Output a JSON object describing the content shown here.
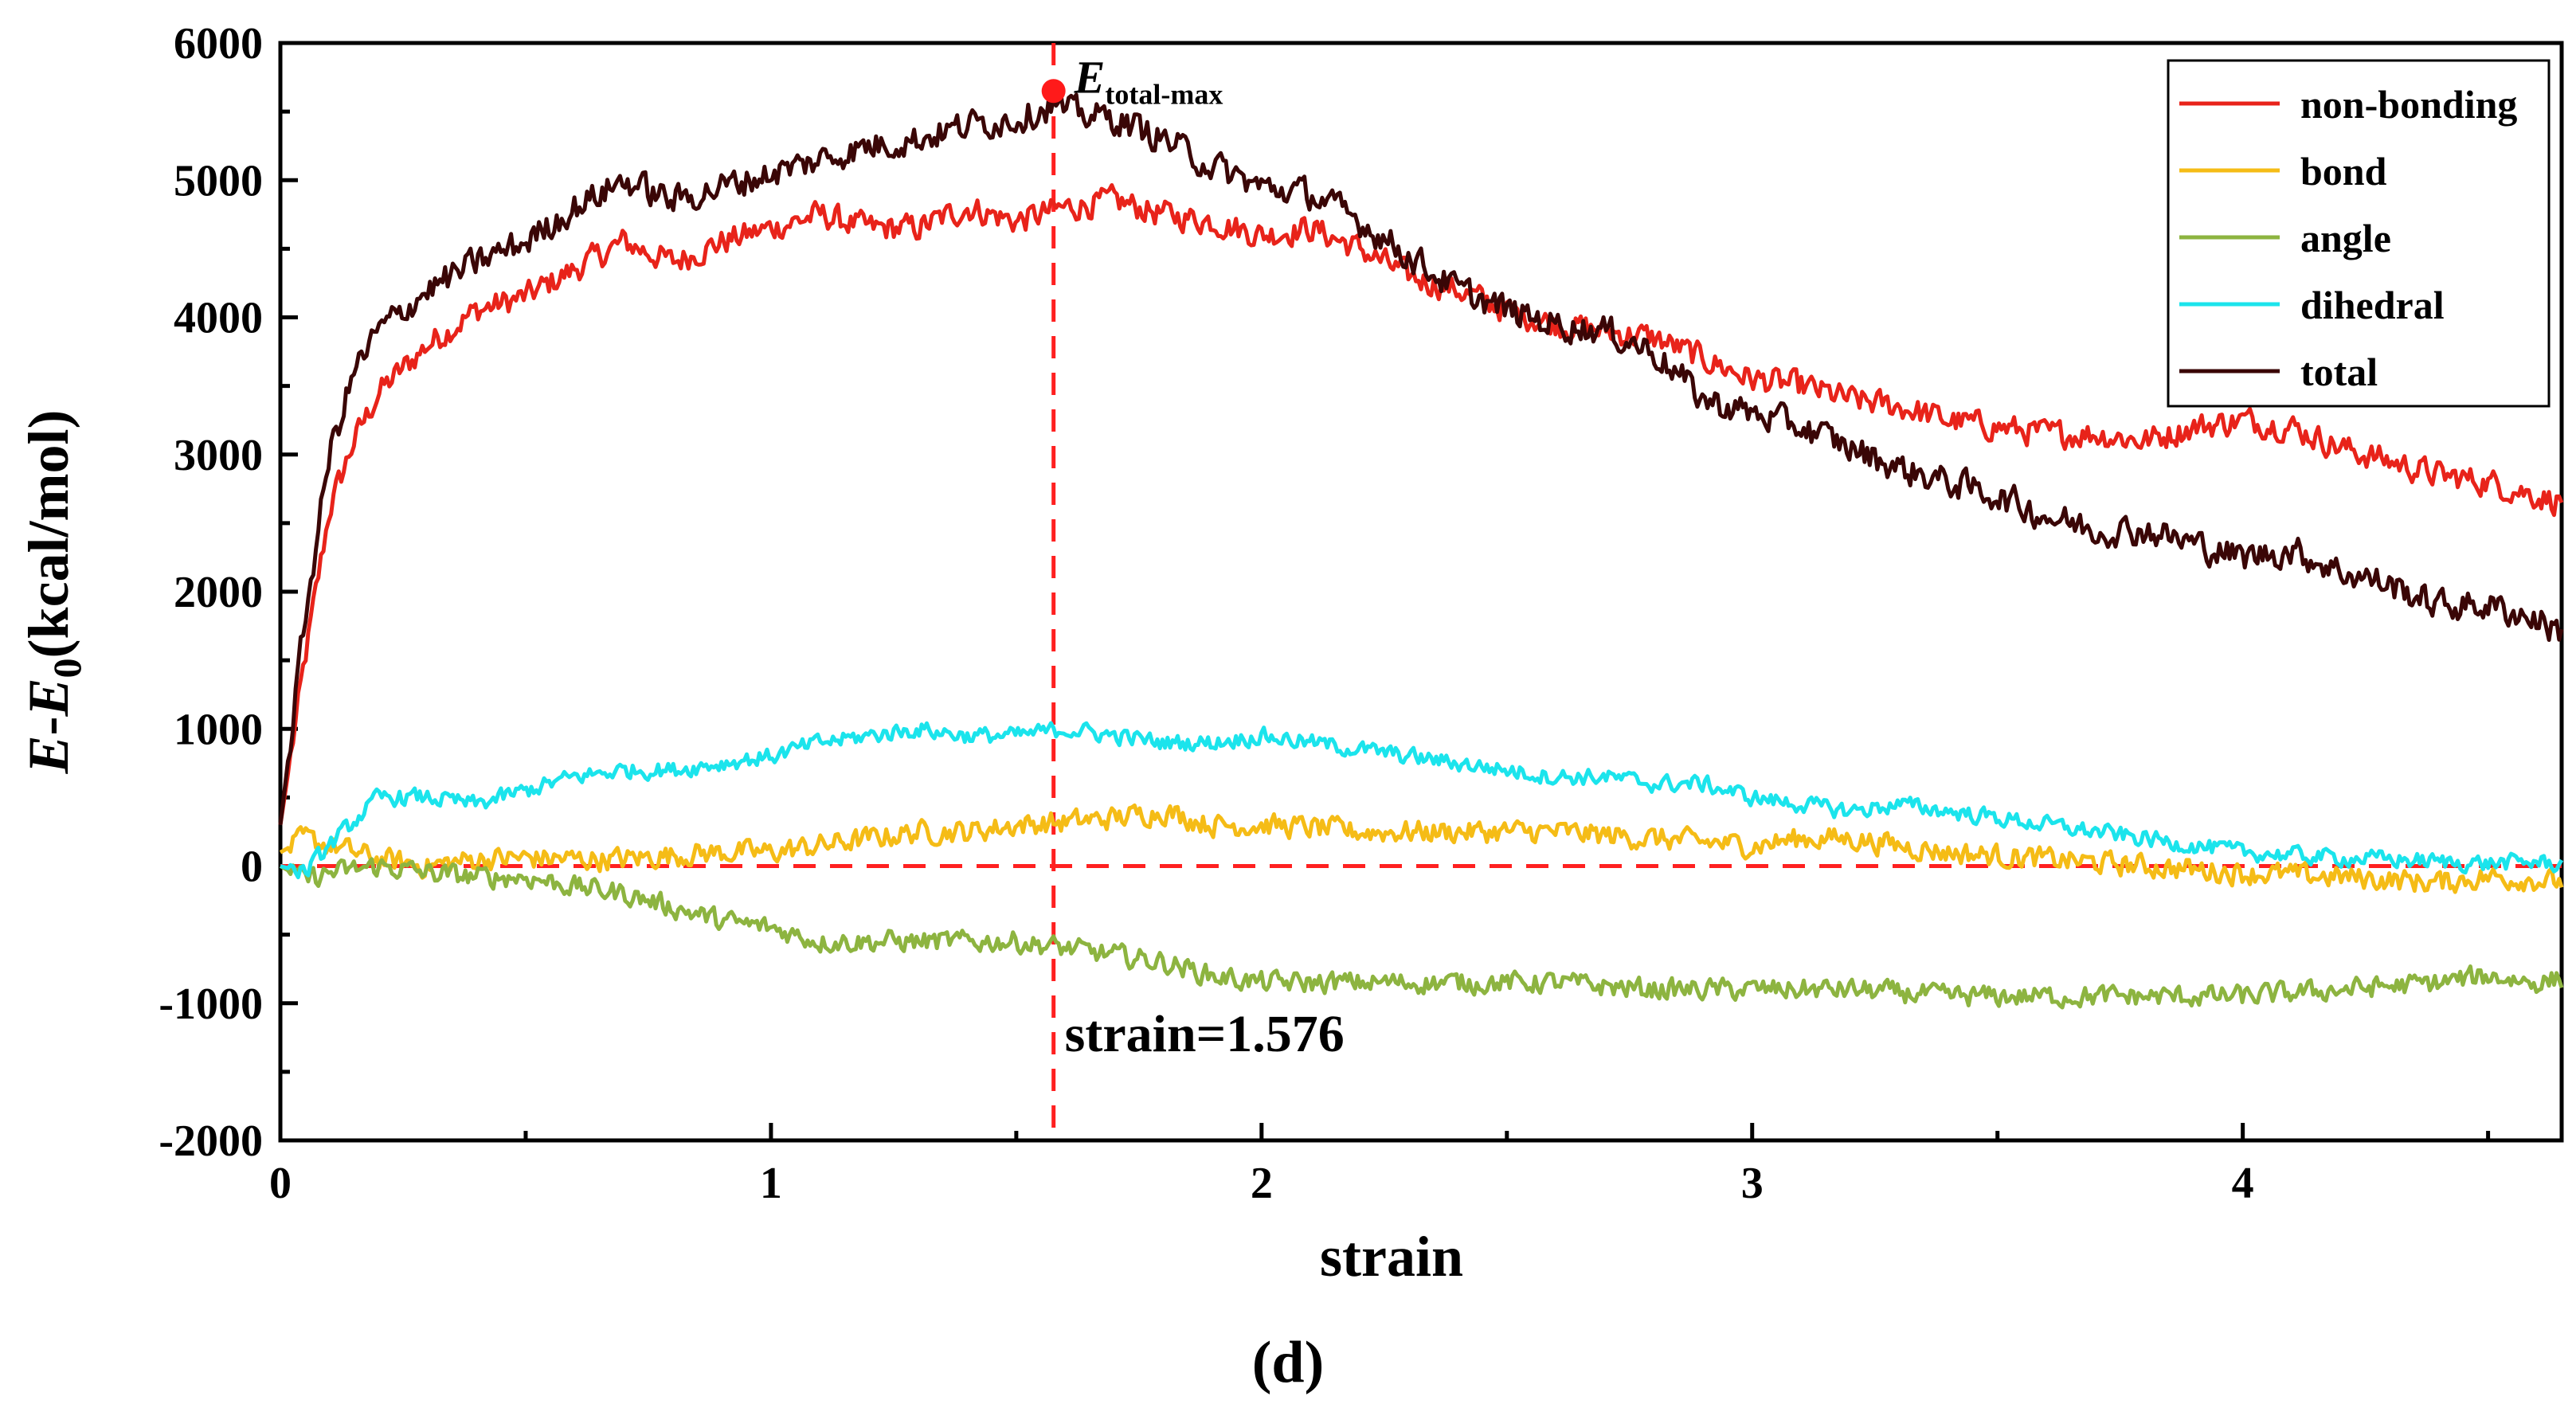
{
  "chart_data": {
    "type": "line",
    "title": "",
    "xlabel": "strain",
    "ylabel": {
      "E1": "E",
      "dash": "-",
      "E2": "E",
      "sub": "0",
      "unit": "(kcal/mol)"
    },
    "xlim": [
      0,
      4.65
    ],
    "ylim": [
      -2000,
      6000
    ],
    "x_ticks": [
      0,
      1,
      2,
      3,
      4
    ],
    "x_minor_ticks": [
      0.5,
      1.5,
      2.5,
      3.5,
      4.5
    ],
    "y_ticks": [
      -2000,
      -1000,
      0,
      1000,
      2000,
      3000,
      4000,
      5000,
      6000
    ],
    "y_minor_ticks": [
      -1500,
      -500,
      500,
      1500,
      2500,
      3500,
      4500,
      5500
    ],
    "grid": false,
    "legend_position": "top-right",
    "zero_line": {
      "y": 0,
      "color": "#ff2020",
      "style": "dashed"
    },
    "vertical_line": {
      "x": 1.576,
      "color": "#ff2020",
      "style": "dashed",
      "label": "strain=1.576"
    },
    "peak_marker": {
      "x": 1.576,
      "y": 5650,
      "label_main": "E",
      "label_sub": "total-max",
      "color": "#ff1a1a"
    },
    "series": [
      {
        "name": "non-bonding",
        "color": "#e8231a",
        "noise": 90,
        "points": [
          [
            0,
            300
          ],
          [
            0.05,
            1500
          ],
          [
            0.1,
            2600
          ],
          [
            0.15,
            3100
          ],
          [
            0.2,
            3450
          ],
          [
            0.3,
            3800
          ],
          [
            0.4,
            4050
          ],
          [
            0.5,
            4150
          ],
          [
            0.6,
            4350
          ],
          [
            0.7,
            4550
          ],
          [
            0.8,
            4400
          ],
          [
            0.9,
            4550
          ],
          [
            1.0,
            4650
          ],
          [
            1.1,
            4750
          ],
          [
            1.2,
            4650
          ],
          [
            1.3,
            4650
          ],
          [
            1.4,
            4800
          ],
          [
            1.5,
            4700
          ],
          [
            1.6,
            4800
          ],
          [
            1.7,
            4850
          ],
          [
            1.8,
            4750
          ],
          [
            1.9,
            4700
          ],
          [
            2.0,
            4600
          ],
          [
            2.1,
            4650
          ],
          [
            2.2,
            4500
          ],
          [
            2.3,
            4300
          ],
          [
            2.4,
            4200
          ],
          [
            2.5,
            4050
          ],
          [
            2.6,
            3950
          ],
          [
            2.7,
            3900
          ],
          [
            2.8,
            3850
          ],
          [
            2.9,
            3700
          ],
          [
            3.0,
            3550
          ],
          [
            3.1,
            3500
          ],
          [
            3.2,
            3400
          ],
          [
            3.3,
            3350
          ],
          [
            3.4,
            3250
          ],
          [
            3.5,
            3200
          ],
          [
            3.6,
            3150
          ],
          [
            3.7,
            3150
          ],
          [
            3.8,
            3100
          ],
          [
            3.9,
            3200
          ],
          [
            4.0,
            3250
          ],
          [
            4.1,
            3200
          ],
          [
            4.2,
            3050
          ],
          [
            4.3,
            2950
          ],
          [
            4.4,
            2850
          ],
          [
            4.5,
            2800
          ],
          [
            4.6,
            2700
          ],
          [
            4.65,
            2650
          ]
        ]
      },
      {
        "name": "bond",
        "color": "#f5bc16",
        "noise": 75,
        "points": [
          [
            0,
            100
          ],
          [
            0.05,
            200
          ],
          [
            0.1,
            150
          ],
          [
            0.2,
            50
          ],
          [
            0.3,
            0
          ],
          [
            0.4,
            50
          ],
          [
            0.5,
            60
          ],
          [
            0.6,
            50
          ],
          [
            0.7,
            50
          ],
          [
            0.8,
            80
          ],
          [
            0.9,
            100
          ],
          [
            1.0,
            100
          ],
          [
            1.1,
            150
          ],
          [
            1.2,
            200
          ],
          [
            1.3,
            250
          ],
          [
            1.4,
            250
          ],
          [
            1.5,
            300
          ],
          [
            1.6,
            320
          ],
          [
            1.7,
            350
          ],
          [
            1.8,
            400
          ],
          [
            1.9,
            300
          ],
          [
            2.0,
            300
          ],
          [
            2.1,
            280
          ],
          [
            2.2,
            250
          ],
          [
            2.4,
            250
          ],
          [
            2.6,
            250
          ],
          [
            2.8,
            200
          ],
          [
            3.0,
            150
          ],
          [
            3.1,
            200
          ],
          [
            3.2,
            200
          ],
          [
            3.4,
            100
          ],
          [
            3.6,
            50
          ],
          [
            3.8,
            0
          ],
          [
            4.0,
            -50
          ],
          [
            4.2,
            -80
          ],
          [
            4.4,
            -120
          ],
          [
            4.5,
            -80
          ],
          [
            4.6,
            -100
          ],
          [
            4.65,
            -120
          ]
        ]
      },
      {
        "name": "angle",
        "color": "#8db440",
        "noise": 70,
        "points": [
          [
            0,
            0
          ],
          [
            0.05,
            -100
          ],
          [
            0.1,
            -50
          ],
          [
            0.2,
            0
          ],
          [
            0.3,
            -50
          ],
          [
            0.4,
            -80
          ],
          [
            0.5,
            -80
          ],
          [
            0.6,
            -150
          ],
          [
            0.7,
            -200
          ],
          [
            0.8,
            -300
          ],
          [
            0.9,
            -400
          ],
          [
            1.0,
            -450
          ],
          [
            1.1,
            -550
          ],
          [
            1.2,
            -550
          ],
          [
            1.3,
            -550
          ],
          [
            1.4,
            -550
          ],
          [
            1.5,
            -550
          ],
          [
            1.6,
            -600
          ],
          [
            1.7,
            -650
          ],
          [
            1.8,
            -700
          ],
          [
            1.9,
            -800
          ],
          [
            2.0,
            -850
          ],
          [
            2.2,
            -850
          ],
          [
            2.4,
            -850
          ],
          [
            2.6,
            -850
          ],
          [
            2.8,
            -900
          ],
          [
            3.0,
            -900
          ],
          [
            3.2,
            -900
          ],
          [
            3.4,
            -950
          ],
          [
            3.6,
            -950
          ],
          [
            3.8,
            -950
          ],
          [
            4.0,
            -950
          ],
          [
            4.2,
            -900
          ],
          [
            4.4,
            -850
          ],
          [
            4.5,
            -800
          ],
          [
            4.6,
            -850
          ],
          [
            4.65,
            -820
          ]
        ]
      },
      {
        "name": "dihedral",
        "color": "#1be4ec",
        "noise": 55,
        "points": [
          [
            0,
            0
          ],
          [
            0.05,
            -50
          ],
          [
            0.1,
            150
          ],
          [
            0.2,
            500
          ],
          [
            0.3,
            500
          ],
          [
            0.4,
            450
          ],
          [
            0.5,
            550
          ],
          [
            0.6,
            650
          ],
          [
            0.7,
            700
          ],
          [
            0.8,
            700
          ],
          [
            0.9,
            750
          ],
          [
            1.0,
            800
          ],
          [
            1.1,
            900
          ],
          [
            1.2,
            950
          ],
          [
            1.3,
            1000
          ],
          [
            1.4,
            950
          ],
          [
            1.5,
            950
          ],
          [
            1.6,
            1000
          ],
          [
            1.7,
            950
          ],
          [
            1.8,
            900
          ],
          [
            1.9,
            900
          ],
          [
            2.0,
            950
          ],
          [
            2.1,
            900
          ],
          [
            2.2,
            850
          ],
          [
            2.3,
            800
          ],
          [
            2.4,
            750
          ],
          [
            2.5,
            700
          ],
          [
            2.6,
            650
          ],
          [
            2.7,
            650
          ],
          [
            2.8,
            600
          ],
          [
            2.9,
            600
          ],
          [
            3.0,
            500
          ],
          [
            3.1,
            450
          ],
          [
            3.2,
            400
          ],
          [
            3.3,
            450
          ],
          [
            3.4,
            400
          ],
          [
            3.5,
            350
          ],
          [
            3.6,
            300
          ],
          [
            3.7,
            250
          ],
          [
            3.8,
            200
          ],
          [
            3.9,
            150
          ],
          [
            4.0,
            100
          ],
          [
            4.1,
            80
          ],
          [
            4.2,
            60
          ],
          [
            4.3,
            50
          ],
          [
            4.4,
            30
          ],
          [
            4.5,
            20
          ],
          [
            4.6,
            30
          ],
          [
            4.65,
            10
          ]
        ]
      },
      {
        "name": "total",
        "color": "#3a0606",
        "noise": 100,
        "points": [
          [
            0,
            300
          ],
          [
            0.05,
            1800
          ],
          [
            0.1,
            3000
          ],
          [
            0.15,
            3600
          ],
          [
            0.2,
            3900
          ],
          [
            0.3,
            4200
          ],
          [
            0.4,
            4400
          ],
          [
            0.5,
            4550
          ],
          [
            0.6,
            4800
          ],
          [
            0.7,
            5000
          ],
          [
            0.8,
            4850
          ],
          [
            0.9,
            4950
          ],
          [
            1.0,
            5050
          ],
          [
            1.1,
            5150
          ],
          [
            1.2,
            5250
          ],
          [
            1.3,
            5300
          ],
          [
            1.4,
            5400
          ],
          [
            1.5,
            5450
          ],
          [
            1.576,
            5550
          ],
          [
            1.6,
            5500
          ],
          [
            1.7,
            5450
          ],
          [
            1.8,
            5300
          ],
          [
            1.9,
            5100
          ],
          [
            2.0,
            4950
          ],
          [
            2.1,
            4900
          ],
          [
            2.2,
            4700
          ],
          [
            2.3,
            4450
          ],
          [
            2.4,
            4200
          ],
          [
            2.5,
            4050
          ],
          [
            2.6,
            3950
          ],
          [
            2.7,
            3900
          ],
          [
            2.8,
            3750
          ],
          [
            2.9,
            3400
          ],
          [
            3.0,
            3300
          ],
          [
            3.1,
            3200
          ],
          [
            3.2,
            3050
          ],
          [
            3.3,
            2900
          ],
          [
            3.4,
            2800
          ],
          [
            3.5,
            2700
          ],
          [
            3.6,
            2550
          ],
          [
            3.7,
            2450
          ],
          [
            3.8,
            2450
          ],
          [
            3.9,
            2350
          ],
          [
            4.0,
            2250
          ],
          [
            4.1,
            2300
          ],
          [
            4.2,
            2150
          ],
          [
            4.3,
            2050
          ],
          [
            4.4,
            1900
          ],
          [
            4.5,
            1900
          ],
          [
            4.6,
            1800
          ],
          [
            4.65,
            1700
          ]
        ]
      }
    ]
  },
  "panel_label": "(d)"
}
